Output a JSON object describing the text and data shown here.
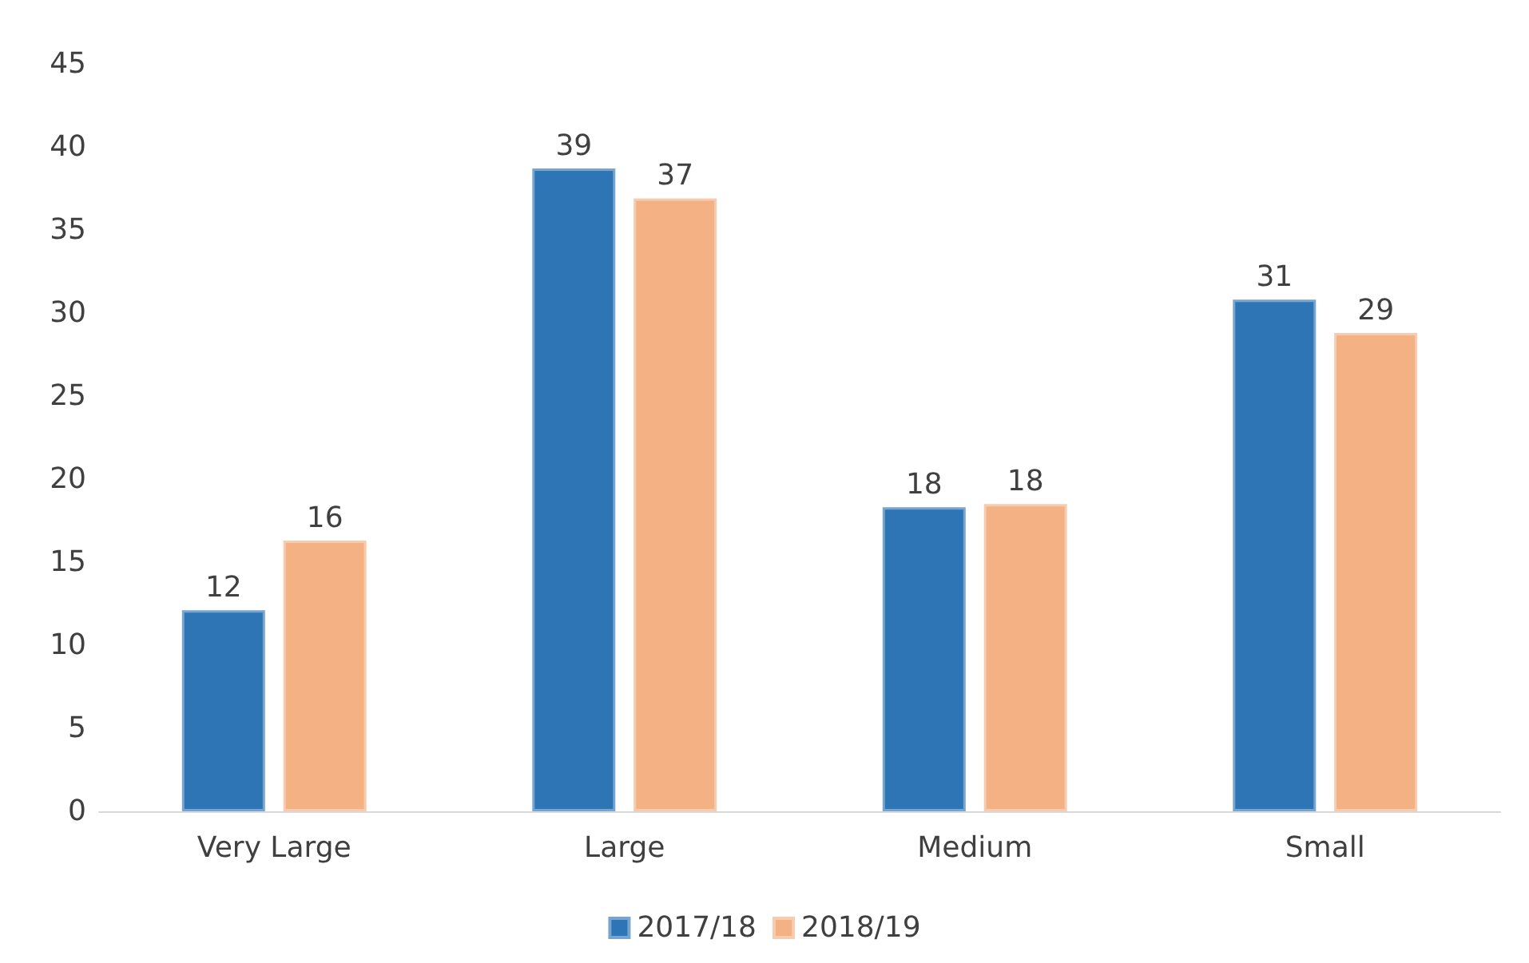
{
  "chart_data": {
    "type": "bar",
    "categories": [
      "Very Large",
      "Large",
      "Medium",
      "Small"
    ],
    "series": [
      {
        "name": "2017/18",
        "color": "#2e75b6",
        "values": [
          12.1,
          38.7,
          18.3,
          30.8
        ],
        "value_labels": [
          "12",
          "39",
          "18",
          "31"
        ]
      },
      {
        "name": "2018/19",
        "color": "#f4b183",
        "values": [
          16.3,
          36.9,
          18.5,
          28.8
        ],
        "value_labels": [
          "16",
          "37",
          "18",
          "29"
        ]
      }
    ],
    "ylim": [
      0,
      45
    ],
    "yticks": [
      0,
      5,
      10,
      15,
      20,
      25,
      30,
      35,
      40,
      45
    ],
    "grid": false,
    "legend": "bottom"
  }
}
